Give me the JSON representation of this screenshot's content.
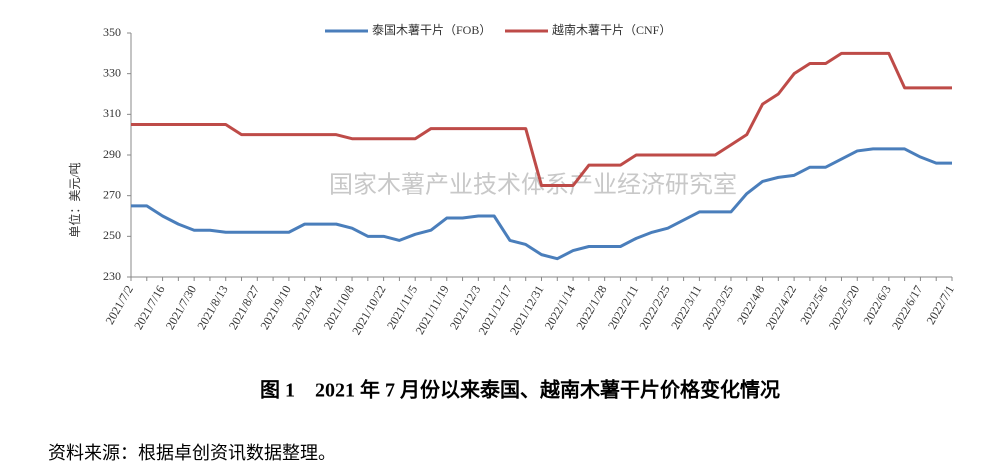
{
  "chart_data": {
    "type": "line",
    "watermark": "国家木薯产业技术体系产业经济研究室",
    "ylabel": "单位：美元/吨",
    "caption": "图 1　2021 年 7 月份以来泰国、越南木薯干片价格变化情况",
    "source": "资料来源：根据卓创资讯数据整理。",
    "categories": [
      "2021/7/2",
      null,
      "2021/7/16",
      null,
      "2021/7/30",
      null,
      "2021/8/13",
      null,
      "2021/8/27",
      null,
      "2021/9/10",
      null,
      "2021/9/24",
      null,
      "2021/10/8",
      null,
      "2021/10/22",
      null,
      "2021/11/5",
      null,
      "2021/11/19",
      null,
      "2021/12/3",
      null,
      "2021/12/17",
      null,
      "2021/12/31",
      null,
      "2022/1/14",
      null,
      "2022/1/28",
      null,
      "2022/2/11",
      null,
      "2022/2/25",
      null,
      "2022/3/11",
      null,
      "2022/3/25",
      null,
      "2022/4/8",
      null,
      "2022/4/22",
      null,
      "2022/5/6",
      null,
      "2022/5/20",
      null,
      "2022/6/3",
      null,
      "2022/6/17",
      null,
      "2022/7/1"
    ],
    "series": [
      {
        "name": "泰国木薯干片（FOB）",
        "color": "#4a7ebb",
        "values": [
          265,
          265,
          260,
          256,
          253,
          253,
          252,
          252,
          252,
          252,
          252,
          256,
          256,
          256,
          254,
          250,
          250,
          248,
          251,
          253,
          259,
          259,
          260,
          260,
          248,
          246,
          241,
          239,
          243,
          245,
          245,
          245,
          249,
          252,
          254,
          258,
          262,
          262,
          262,
          271,
          277,
          279,
          280,
          284,
          284,
          288,
          292,
          293,
          293,
          293,
          289,
          286,
          286
        ]
      },
      {
        "name": "越南木薯干片（CNF）",
        "color": "#be4b48",
        "values": [
          305,
          305,
          305,
          305,
          305,
          305,
          305,
          300,
          300,
          300,
          300,
          300,
          300,
          300,
          298,
          298,
          298,
          298,
          298,
          303,
          303,
          303,
          303,
          303,
          303,
          303,
          275,
          275,
          275,
          285,
          285,
          285,
          290,
          290,
          290,
          290,
          290,
          290,
          295,
          300,
          315,
          320,
          330,
          335,
          335,
          340,
          340,
          340,
          340,
          323,
          323,
          323,
          323
        ]
      }
    ],
    "ylim": [
      230,
      350
    ],
    "yticks": [
      230,
      250,
      270,
      290,
      310,
      330,
      350
    ],
    "grid": false
  }
}
